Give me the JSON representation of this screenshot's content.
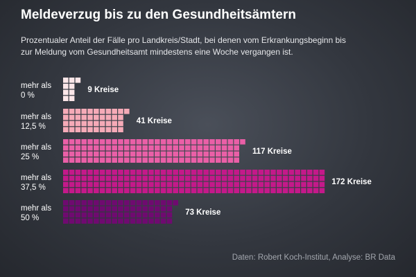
{
  "title": "Meldeverzug bis zu den Gesundheitsämtern",
  "subtitle": "Prozentualer Anteil der Fälle pro Landkreis/Stadt, bei denen vom Erkrankungsbeginn bis zur Meldung vom Gesundheitsamt mindestens eine Woche vergangen ist.",
  "source": "Daten: Robert Koch-Institut, Analyse: BR Data",
  "chart_data": {
    "type": "bar",
    "subtype": "waffle",
    "orientation": "horizontal",
    "unit": "Kreise",
    "categories": [
      {
        "line1": "mehr als",
        "line2": "0 %"
      },
      {
        "line1": "mehr als",
        "line2": "12,5 %"
      },
      {
        "line1": "mehr als",
        "line2": "25 %"
      },
      {
        "line1": "mehr als",
        "line2": "37,5 %"
      },
      {
        "line1": "mehr als",
        "line2": "50 %"
      }
    ],
    "values": [
      9,
      41,
      117,
      172,
      73
    ],
    "labels": [
      "9 Kreise",
      "41 Kreise",
      "117 Kreise",
      "172 Kreise",
      "73 Kreise"
    ],
    "colors": [
      "#fbe6e8",
      "#f5aab7",
      "#ea5fa7",
      "#c4198a",
      "#6f0a70"
    ],
    "grid": false,
    "legend": "none"
  }
}
